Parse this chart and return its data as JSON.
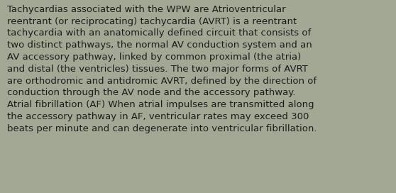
{
  "background_color": "#a3a895",
  "text_color": "#1c1c1c",
  "font_size": 9.5,
  "font_family": "DejaVu Sans",
  "lines": [
    "Tachycardias associated with the WPW are Atrioventricular",
    "reentrant (or reciprocating) tachycardia (AVRT) is a reentrant",
    "tachycardia with an anatomically defined circuit that consists of",
    "two distinct pathways, the normal AV conduction system and an",
    "AV accessory pathway, linked by common proximal (the atria)",
    "and distal (the ventricles) tissues. The two major forms of AVRT",
    "are orthodromic and antidromic AVRT, defined by the direction of",
    "conduction through the AV node and the accessory pathway.",
    "Atrial fibrillation (AF) When atrial impulses are transmitted along",
    "the accessory pathway in AF, ventricular rates may exceed 300",
    "beats per minute and can degenerate into ventricular fibrillation."
  ],
  "fig_width": 5.58,
  "fig_height": 2.72,
  "dpi": 100
}
